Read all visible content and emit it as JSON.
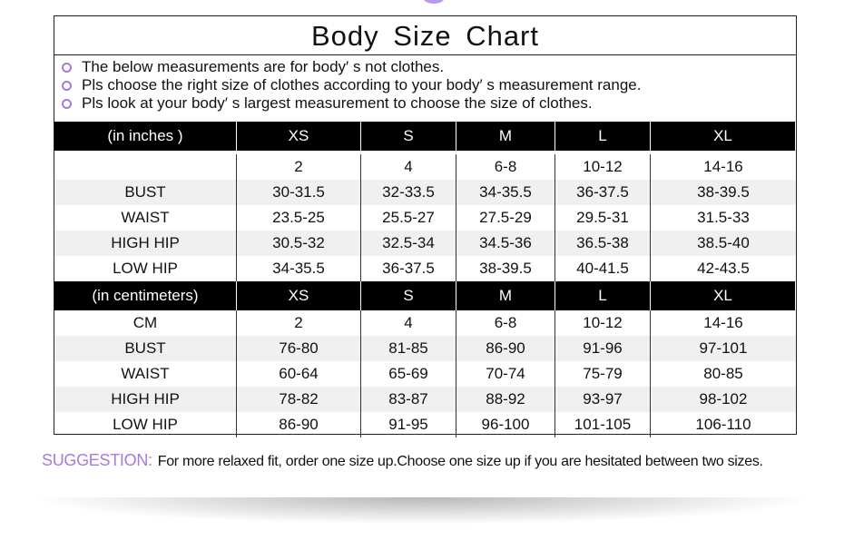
{
  "title": "Body  Size  Chart",
  "notes": [
    "The below measurements are for  body′ s not clothes.",
    "Pls choose the right size of clothes according to your body′ s  measurement range.",
    "Pls look  at your body′ s  largest measurement to choose the size of clothes."
  ],
  "accent": "#a77ae0",
  "inches": {
    "header": [
      "(in  inches )",
      "XS",
      "S",
      "M",
      "L",
      "XL"
    ],
    "rows": [
      [
        "",
        "2",
        "4",
        "6-8",
        "10-12",
        "14-16"
      ],
      [
        "BUST",
        "30-31.5",
        "32-33.5",
        "34-35.5",
        "36-37.5",
        "38-39.5"
      ],
      [
        "WAIST",
        "23.5-25",
        "25.5-27",
        "27.5-29",
        "29.5-31",
        "31.5-33"
      ],
      [
        "HIGH HIP",
        "30.5-32",
        "32.5-34",
        "34.5-36",
        "36.5-38",
        "38.5-40"
      ],
      [
        "LOW HIP",
        "34-35.5",
        "36-37.5",
        "38-39.5",
        "40-41.5",
        "42-43.5"
      ]
    ]
  },
  "cm": {
    "header": [
      "(in centimeters)",
      "XS",
      "S",
      "M",
      "L",
      "XL"
    ],
    "rows": [
      [
        "CM",
        "2",
        "4",
        "6-8",
        "10-12",
        "14-16"
      ],
      [
        "BUST",
        "76-80",
        "81-85",
        "86-90",
        "91-96",
        "97-101"
      ],
      [
        "WAIST",
        "60-64",
        "65-69",
        "70-74",
        "75-79",
        "80-85"
      ],
      [
        "HIGH HIP",
        "78-82",
        "83-87",
        "88-92",
        "93-97",
        "98-102"
      ],
      [
        "LOW HIP",
        "86-90",
        "91-95",
        "96-100",
        "101-105",
        "106-110"
      ]
    ]
  },
  "suggestion": {
    "label": "SUGGESTION:",
    "text": "For more relaxed fit, order one size up.Choose one size up if you are hesitated between two sizes."
  }
}
